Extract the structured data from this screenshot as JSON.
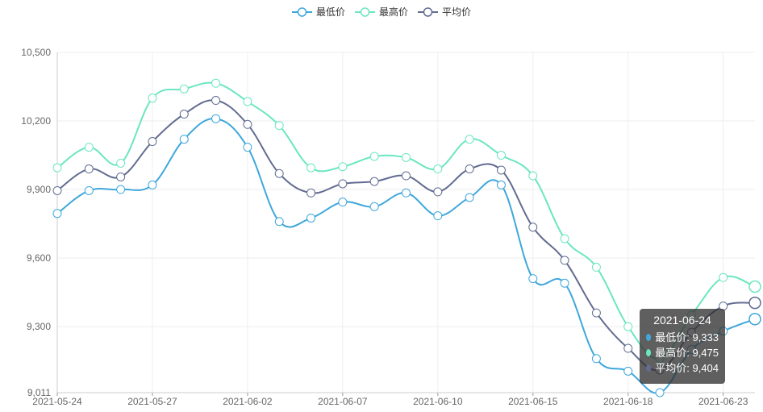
{
  "legend": {
    "items": [
      {
        "label": "最低价",
        "color": "#3fa7dc"
      },
      {
        "label": "最高价",
        "color": "#6be6c1"
      },
      {
        "label": "平均价",
        "color": "#626c91"
      }
    ]
  },
  "tooltip": {
    "date": "2021-06-24",
    "rows": [
      {
        "label": "最低价: 9,333",
        "color": "#3fa7dc"
      },
      {
        "label": "最高价: 9,475",
        "color": "#6be6c1"
      },
      {
        "label": "平均价: 9,404",
        "color": "#626c91"
      }
    ]
  },
  "chart_data": {
    "type": "line",
    "smooth": true,
    "title": "",
    "xlabel": "",
    "ylabel": "",
    "ylim": [
      9011,
      10500
    ],
    "y_ticks": [
      "9,011",
      "9,300",
      "9,600",
      "9,900",
      "10,200",
      "10,500"
    ],
    "y_tick_values": [
      9011,
      9300,
      9600,
      9900,
      10200,
      10500
    ],
    "x_tick_labels": [
      "2021-05-24",
      "2021-05-27",
      "2021-06-02",
      "2021-06-07",
      "2021-06-10",
      "2021-06-15",
      "2021-06-18",
      "2021-06-23"
    ],
    "x_tick_indices": [
      0,
      3,
      6,
      9,
      12,
      15,
      18,
      21
    ],
    "grid": true,
    "legend_position": "top-center",
    "highlight_index": 22,
    "series": [
      {
        "name": "最低价",
        "color": "#3fa7dc",
        "values": [
          9795,
          9895,
          9900,
          9920,
          10120,
          10210,
          10085,
          9760,
          9775,
          9845,
          9825,
          9885,
          9785,
          9865,
          9920,
          9510,
          9490,
          9160,
          9105,
          9011,
          9200,
          9280,
          9333
        ]
      },
      {
        "name": "最高价",
        "color": "#6be6c1",
        "values": [
          9995,
          10085,
          10015,
          10300,
          10340,
          10365,
          10285,
          10180,
          9995,
          10000,
          10045,
          10040,
          9990,
          10120,
          10050,
          9960,
          9685,
          9560,
          9300,
          9160,
          9350,
          9515,
          9475
        ]
      },
      {
        "name": "平均价",
        "color": "#626c91",
        "values": [
          9895,
          9990,
          9955,
          10110,
          10230,
          10290,
          10185,
          9970,
          9885,
          9925,
          9935,
          9960,
          9890,
          9990,
          9985,
          9735,
          9590,
          9360,
          9205,
          9110,
          9275,
          9390,
          9404
        ]
      }
    ]
  }
}
